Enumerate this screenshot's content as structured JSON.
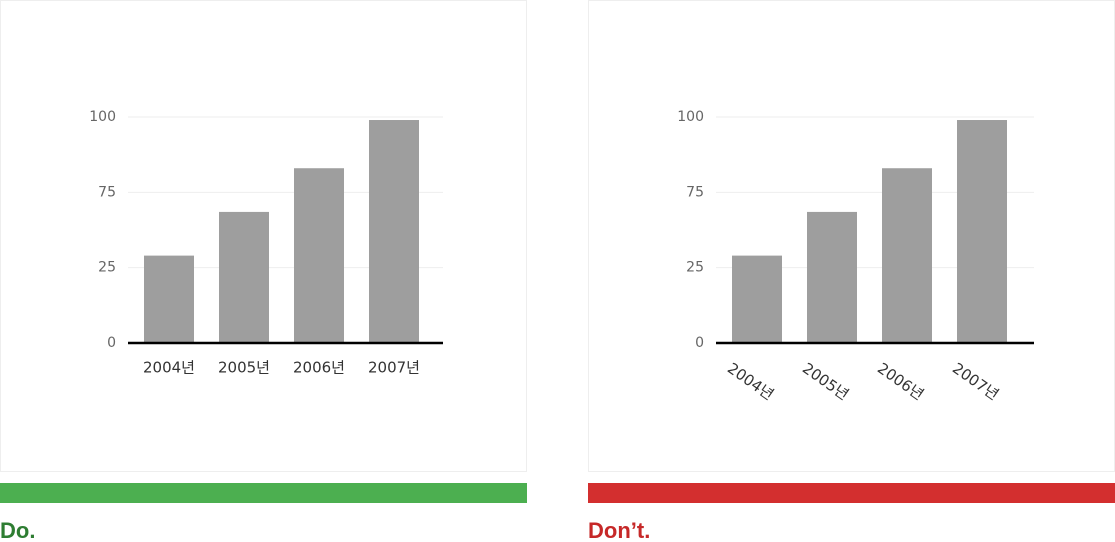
{
  "chart_data": [
    {
      "type": "bar",
      "categories": [
        "2004년",
        "2005년",
        "2006년",
        "2007년"
      ],
      "values": [
        33,
        62,
        83,
        99
      ],
      "color": "#9e9e9e",
      "ylim": [
        0,
        100
      ],
      "yticks": [
        0,
        25,
        75,
        100
      ],
      "grid": true,
      "x_label_rotation": 0
    },
    {
      "type": "bar",
      "categories": [
        "2004년",
        "2005년",
        "2006년",
        "2007년"
      ],
      "values": [
        33,
        62,
        83,
        99
      ],
      "color": "#9e9e9e",
      "ylim": [
        0,
        100
      ],
      "yticks": [
        0,
        25,
        75,
        100
      ],
      "grid": true,
      "x_label_rotation": 35
    }
  ],
  "captions": [
    {
      "text": "Do.",
      "color": "#2e7d32",
      "bar_color": "#4caf50"
    },
    {
      "text": "Don’t.",
      "color": "#c62828",
      "bar_color": "#d32f2f"
    }
  ]
}
